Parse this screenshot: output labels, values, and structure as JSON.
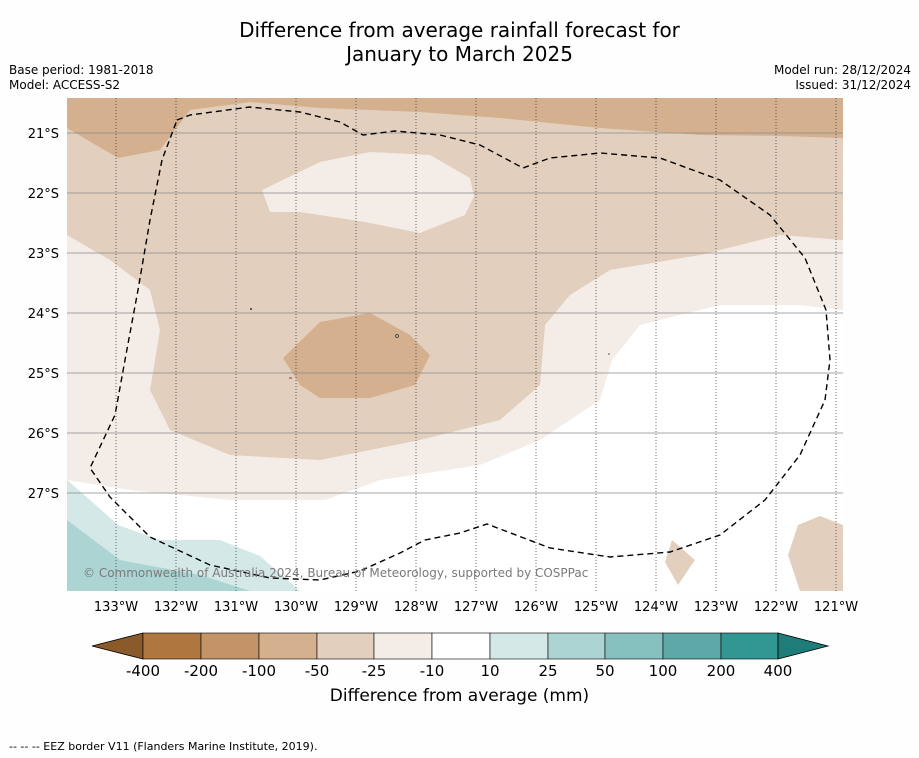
{
  "title_line1": "Difference from average rainfall forecast for",
  "title_line2": "January to March 2025",
  "base_period": "Base period: 1981-2018",
  "model": "Model: ACCESS-S2",
  "model_run": "Model run: 28/12/2024",
  "issued": "Issued: 31/12/2024",
  "copyright": "© Commonwealth of Australia 2024, Bureau of Meteorology, supported by COSPPac",
  "lat_labels": [
    "21°S",
    "22°S",
    "23°S",
    "24°S",
    "25°S",
    "26°S",
    "27°S"
  ],
  "lon_labels": [
    "133°W",
    "132°W",
    "131°W",
    "130°W",
    "129°W",
    "128°W",
    "127°W",
    "126°W",
    "125°W",
    "124°W",
    "123°W",
    "122°W",
    "121°W"
  ],
  "colorbar": {
    "label": "Difference from average (mm)",
    "ticks": [
      "-400",
      "-200",
      "-100",
      "-50",
      "-25",
      "-10",
      "10",
      "25",
      "50",
      "100",
      "200",
      "400"
    ],
    "colors": [
      "#8a5a2b",
      "#af773f",
      "#c29468",
      "#d4b08f",
      "#e3cfbd",
      "#f4ece6",
      "#ffffff",
      "#d3e8e7",
      "#abd4d3",
      "#86c0bf",
      "#5ea9a7",
      "#329792",
      "#1f7d79"
    ]
  },
  "footer": "--  --  -- EEZ border V11 (Flanders Marine Institute, 2019)."
}
